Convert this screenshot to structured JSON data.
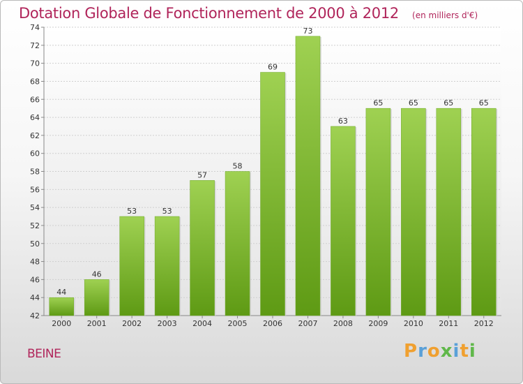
{
  "header": {
    "title": "Dotation Globale de Fonctionnement de 2000 à 2012",
    "subtitle": "(en milliers d'€)"
  },
  "footer": {
    "commune": "BEINE",
    "brand": "Proxiti"
  },
  "colors": {
    "title": "#b0245a",
    "bar_top": "#9fd152",
    "bar_bottom": "#5e9a14",
    "brand_letters": [
      "#f0a030",
      "#5aa0d8",
      "#f0a030",
      "#60b84a",
      "#5aa0d8",
      "#f0a030",
      "#60b84a"
    ]
  },
  "chart_data": {
    "type": "bar",
    "categories": [
      "2000",
      "2001",
      "2002",
      "2003",
      "2004",
      "2005",
      "2006",
      "2007",
      "2008",
      "2009",
      "2010",
      "2011",
      "2012"
    ],
    "values": [
      44,
      46,
      53,
      53,
      57,
      58,
      69,
      73,
      63,
      65,
      65,
      65,
      65
    ],
    "title": "Dotation Globale de Fonctionnement de 2000 à 2012",
    "ylim": [
      42,
      74
    ],
    "yticks": [
      42,
      44,
      46,
      48,
      50,
      52,
      54,
      56,
      58,
      60,
      62,
      64,
      66,
      68,
      70,
      72,
      74
    ],
    "grid": true,
    "data_labels": true
  }
}
